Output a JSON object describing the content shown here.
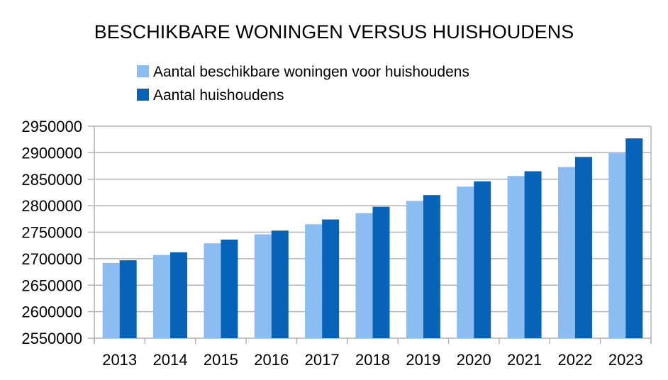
{
  "chart_data": {
    "type": "bar",
    "title": "BESCHIKBARE WONINGEN VERSUS HUISHOUDENS",
    "xlabel": "",
    "ylabel": "",
    "categories": [
      "2013",
      "2014",
      "2015",
      "2016",
      "2017",
      "2018",
      "2019",
      "2020",
      "2021",
      "2022",
      "2023"
    ],
    "series": [
      {
        "name": "Aantal beschikbare woningen voor huishoudens",
        "color": "#8bbdf2",
        "values": [
          2692000,
          2707000,
          2729000,
          2746000,
          2765000,
          2786000,
          2809000,
          2836000,
          2856000,
          2873000,
          2899000
        ]
      },
      {
        "name": "Aantal huishoudens",
        "color": "#0663b8",
        "values": [
          2697000,
          2712000,
          2736000,
          2753000,
          2774000,
          2798000,
          2820000,
          2846000,
          2865000,
          2892000,
          2927000
        ]
      }
    ],
    "ylim": [
      2550000,
      2950000
    ],
    "yticks": [
      "2550000",
      "2600000",
      "2650000",
      "2700000",
      "2750000",
      "2800000",
      "2850000",
      "2900000",
      "2950000"
    ],
    "grid": true,
    "legend_position": "top"
  }
}
